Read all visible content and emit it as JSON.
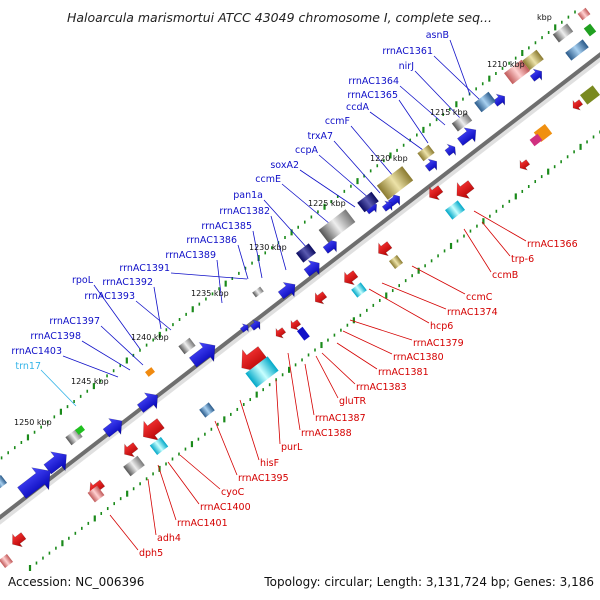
{
  "title": "Haloarcula marismortui ATCC 43049 chromosome I, complete seq...",
  "title_suffix": "kbp",
  "footer": {
    "accession": "Accession: NC_006396",
    "summary": "Topology: circular; Length: 3,131,724 bp; Genes: 3,186"
  },
  "colors": {
    "forward_label": "#1010c8",
    "reverse_label": "#d40000",
    "rna_label": "#35b4e8",
    "backbone": "#6e6e6e",
    "tick": "#1a8a1a"
  },
  "kbp_markers": [
    "1210 kbp",
    "1215 kbp",
    "1220 kbp",
    "1225 kbp",
    "1230 kbp",
    "1235 kbp",
    "1240 kbp",
    "1245 kbp",
    "1250 kbp"
  ],
  "forward_genes": [
    "asnB",
    "rrnAC1361",
    "nirJ",
    "rrnAC1364",
    "rrnAC1365",
    "ccdA",
    "ccmF",
    "trxA7",
    "ccpA",
    "soxA2",
    "ccmE",
    "pan1a",
    "rrnAC1382",
    "rrnAC1385",
    "rrnAC1386",
    "rrnAC1389",
    "rrnAC1391",
    "rpoL",
    "rrnAC1392",
    "rrnAC1393",
    "rrnAC1397",
    "rrnAC1398",
    "rrnAC1403"
  ],
  "rna_genes": [
    "trn17"
  ],
  "reverse_genes": [
    "rrnAC1366",
    "trp-6",
    "ccmB",
    "ccmC",
    "rrnAC1374",
    "hcp6",
    "rrnAC1379",
    "rrnAC1380",
    "rrnAC1381",
    "rrnAC1383",
    "gluTR",
    "rrnAC1387",
    "rrnAC1388",
    "purL",
    "hisF",
    "rrnAC1395",
    "cyoC",
    "rrnAC1400",
    "rrnAC1401",
    "adh4",
    "dph5"
  ]
}
